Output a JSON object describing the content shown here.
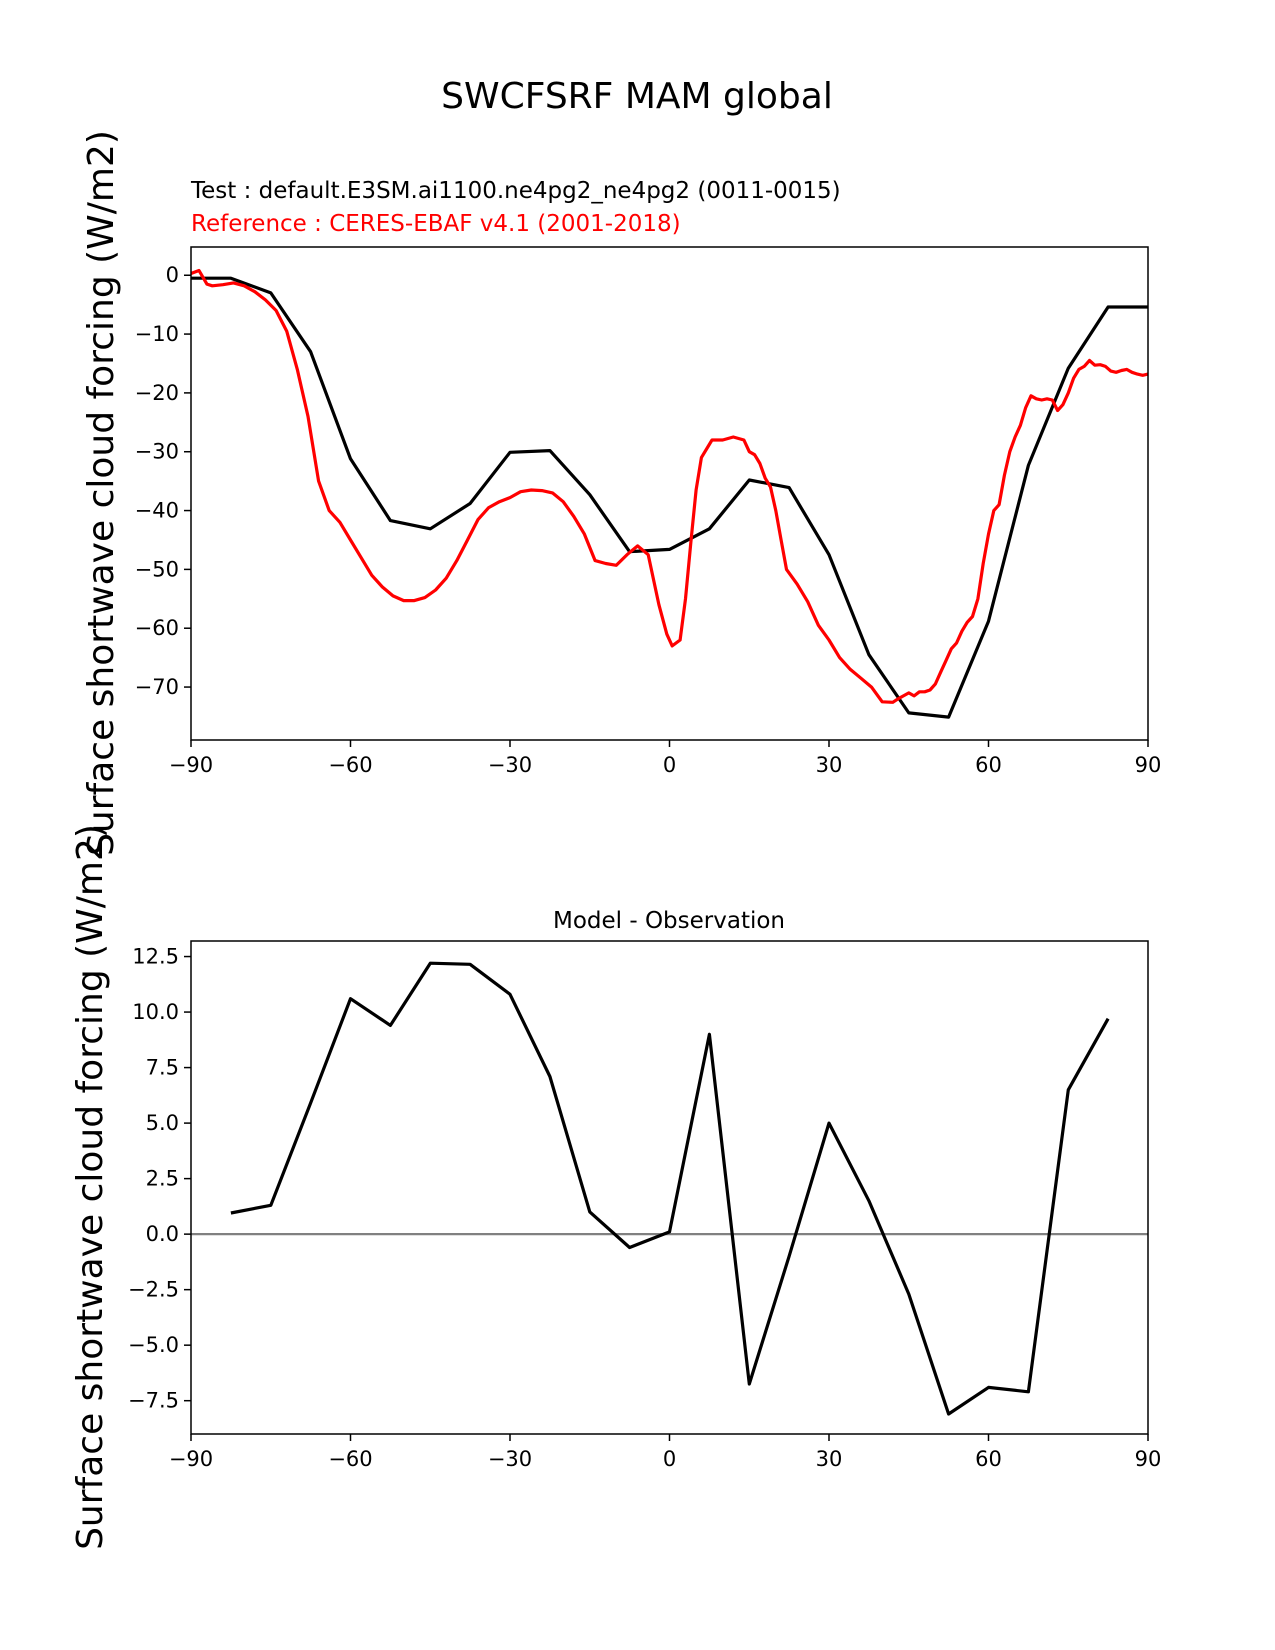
{
  "figure": {
    "title": "SWCFSRF MAM global",
    "test_label": "Test : default.E3SM.ai1100.ne4pg2_ne4pg2 (0011-0015)",
    "reference_label": "Reference : CERES-EBAF v4.1 (2001-2018)",
    "colors": {
      "test": "#000000",
      "reference": "#ff0000",
      "zero_line": "#808080"
    }
  },
  "chart_data": [
    {
      "type": "line",
      "title": "",
      "xlabel": "",
      "ylabel": "Surface shortwave cloud forcing (W/m2)",
      "xlim": [
        -90,
        90
      ],
      "ylim": [
        -79,
        4.8
      ],
      "xticks": [
        -90,
        -60,
        -30,
        0,
        30,
        60,
        90
      ],
      "xtick_labels": [
        "−90",
        "−60",
        "−30",
        "0",
        "30",
        "60",
        "90"
      ],
      "yticks": [
        0,
        -10,
        -20,
        -30,
        -40,
        -50,
        -60,
        -70
      ],
      "ytick_labels": [
        "0",
        "−10",
        "−20",
        "−30",
        "−40",
        "−50",
        "−60",
        "−70"
      ],
      "grid": false,
      "series": [
        {
          "role": "test",
          "color": "#000000",
          "x": [
            -90,
            -82.5,
            -75,
            -67.5,
            -60,
            -52.5,
            -45,
            -37.5,
            -30,
            -22.5,
            -15,
            -7.5,
            0,
            7.5,
            15,
            22.5,
            30,
            37.5,
            45,
            52.5,
            60,
            67.5,
            75,
            82.5,
            90
          ],
          "y": [
            -0.5,
            -0.5,
            -3.0,
            -13.0,
            -31.2,
            -41.7,
            -43.1,
            -38.8,
            -30.1,
            -29.8,
            -37.3,
            -47.0,
            -46.6,
            -43.1,
            -34.8,
            -36.1,
            -47.5,
            -64.5,
            -74.4,
            -75.1,
            -58.8,
            -32.3,
            -15.8,
            -5.4,
            -5.4
          ]
        },
        {
          "role": "reference",
          "color": "#ff0000",
          "x": [
            -90,
            -88.5,
            -87,
            -86,
            -84,
            -82,
            -80,
            -78,
            -76,
            -74,
            -72,
            -70,
            -68,
            -66,
            -64,
            -62,
            -60,
            -58,
            -56,
            -54,
            -52,
            -50,
            -48,
            -46,
            -44,
            -42,
            -40,
            -38,
            -36,
            -34,
            -32,
            -30,
            -28,
            -26,
            -24,
            -22,
            -20,
            -18,
            -16,
            -14,
            -12,
            -10,
            -8,
            -6,
            -4,
            -2,
            -0.5,
            0.5,
            2,
            3,
            4,
            5,
            6,
            8,
            10,
            12,
            14,
            15,
            16,
            17,
            18,
            19,
            20,
            21,
            22,
            24,
            26,
            28,
            30,
            32,
            34,
            36,
            38,
            40,
            42,
            43,
            44,
            45,
            46,
            47,
            48,
            49,
            50,
            51,
            52,
            53,
            54,
            55,
            56,
            57,
            58,
            59,
            60,
            61,
            62,
            63,
            64,
            65,
            66,
            67,
            68,
            69,
            70,
            71,
            72,
            73,
            74,
            75,
            76,
            77,
            78,
            79,
            80,
            81,
            82,
            83,
            84,
            85,
            86,
            87,
            88,
            89,
            90
          ],
          "y": [
            0.3,
            0.8,
            -1.5,
            -1.8,
            -1.6,
            -1.3,
            -1.8,
            -2.8,
            -4.2,
            -6.0,
            -9.5,
            -16.0,
            -24.0,
            -35.0,
            -40.0,
            -42.0,
            -45.0,
            -48.0,
            -51.0,
            -53.0,
            -54.5,
            -55.3,
            -55.3,
            -54.8,
            -53.5,
            -51.5,
            -48.5,
            -45.0,
            -41.5,
            -39.5,
            -38.5,
            -37.8,
            -36.8,
            -36.5,
            -36.6,
            -37.0,
            -38.5,
            -41.0,
            -44.0,
            -48.5,
            -49.0,
            -49.3,
            -47.5,
            -46.0,
            -47.5,
            -56.0,
            -61.0,
            -63.0,
            -62.0,
            -55.0,
            -45.5,
            -36.5,
            -31.0,
            -28.0,
            -28.0,
            -27.5,
            -28.0,
            -30.0,
            -30.5,
            -32.0,
            -34.5,
            -36.0,
            -40.0,
            -45.0,
            -50.0,
            -52.5,
            -55.5,
            -59.5,
            -62.0,
            -65.0,
            -67.0,
            -68.5,
            -70.0,
            -72.5,
            -72.6,
            -72.0,
            -71.5,
            -71.0,
            -71.5,
            -70.8,
            -70.8,
            -70.5,
            -69.5,
            -67.5,
            -65.5,
            -63.5,
            -62.5,
            -60.5,
            -59.0,
            -58.0,
            -55.0,
            -49.0,
            -44.0,
            -40.0,
            -39.0,
            -34.0,
            -30.0,
            -27.5,
            -25.5,
            -22.5,
            -20.5,
            -21.0,
            -21.2,
            -21.0,
            -21.2,
            -23.0,
            -22.0,
            -20.0,
            -17.5,
            -16.0,
            -15.5,
            -14.5,
            -15.3,
            -15.2,
            -15.5,
            -16.3,
            -16.5,
            -16.2,
            -16.0,
            -16.5,
            -16.8,
            -17.0,
            -16.8
          ]
        }
      ]
    },
    {
      "type": "line",
      "title": "Model - Observation",
      "xlabel": "",
      "ylabel": "Surface shortwave cloud forcing (W/m2)",
      "xlim": [
        -90,
        90
      ],
      "ylim": [
        -9.0,
        13.2
      ],
      "xticks": [
        -90,
        -60,
        -30,
        0,
        30,
        60,
        90
      ],
      "xtick_labels": [
        "−90",
        "−60",
        "−30",
        "0",
        "30",
        "60",
        "90"
      ],
      "yticks": [
        12.5,
        10.0,
        7.5,
        5.0,
        2.5,
        0.0,
        -2.5,
        -5.0,
        -7.5
      ],
      "ytick_labels": [
        "12.5",
        "10.0",
        "7.5",
        "5.0",
        "2.5",
        "0.0",
        "−2.5",
        "−5.0",
        "−7.5"
      ],
      "grid": false,
      "zero_line": true,
      "series": [
        {
          "role": "difference",
          "color": "#000000",
          "x": [
            -82.5,
            -75,
            -67.5,
            -60,
            -52.5,
            -45,
            -37.5,
            -30,
            -22.5,
            -15,
            -7.5,
            0,
            7.5,
            15,
            22.5,
            30,
            37.5,
            45,
            52.5,
            60,
            67.5,
            75,
            82.5
          ],
          "y": [
            0.95,
            1.3,
            5.9,
            10.6,
            9.4,
            12.2,
            12.15,
            10.8,
            7.1,
            1.0,
            -0.6,
            0.1,
            9.0,
            -6.75,
            -1.0,
            5.0,
            1.5,
            -2.7,
            -8.1,
            -6.9,
            -7.1,
            6.5,
            9.7
          ]
        }
      ]
    }
  ]
}
